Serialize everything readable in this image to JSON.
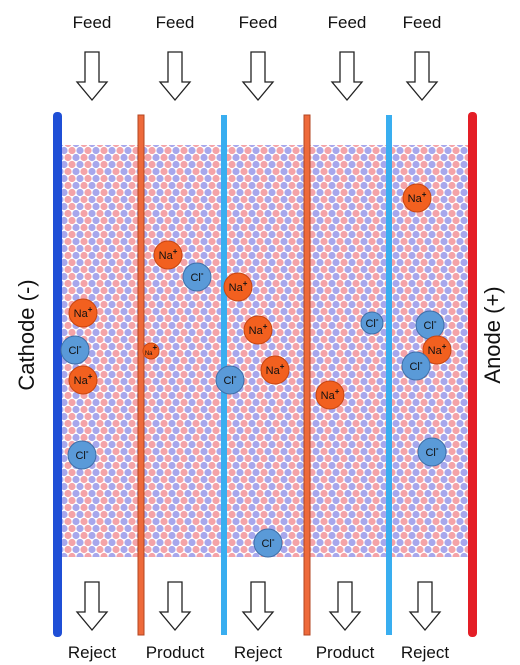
{
  "top_labels": [
    "Feed",
    "Feed",
    "Feed",
    "Feed",
    "Feed"
  ],
  "bottom_labels": [
    "Reject",
    "Product",
    "Reject",
    "Product",
    "Reject"
  ],
  "cathode_label": "Cathode (-)",
  "anode_label": "Anode (+)",
  "ions": [
    {
      "symbol": "Na",
      "charge": "+"
    },
    {
      "symbol": "Cl",
      "charge": "-"
    },
    {
      "symbol": "Na",
      "charge": "+"
    },
    {
      "symbol": "Cl",
      "charge": "-"
    },
    {
      "symbol": "Na",
      "charge": "+"
    },
    {
      "symbol": "Na",
      "charge": "+"
    },
    {
      "symbol": "Cl",
      "charge": "-"
    },
    {
      "symbol": "Cl",
      "charge": "-"
    },
    {
      "symbol": "Na",
      "charge": "+"
    },
    {
      "symbol": "Na",
      "charge": "+"
    },
    {
      "symbol": "Na",
      "charge": "+"
    },
    {
      "symbol": "Cl",
      "charge": "-"
    },
    {
      "symbol": "Na",
      "charge": "+"
    },
    {
      "symbol": "Cl",
      "charge": "-"
    },
    {
      "symbol": "Na",
      "charge": "+"
    },
    {
      "symbol": "Cl",
      "charge": "-"
    },
    {
      "symbol": "Na",
      "charge": "+"
    },
    {
      "symbol": "Cl",
      "charge": "-"
    },
    {
      "symbol": "Cl",
      "charge": "-"
    }
  ]
}
